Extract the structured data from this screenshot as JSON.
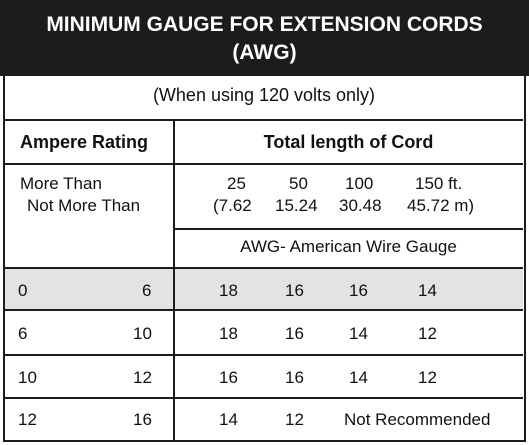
{
  "title": {
    "line1": "MINIMUM GAUGE FOR EXTENSION CORDS",
    "line2": "(AWG)"
  },
  "note": "(When using 120 volts only)",
  "headers": {
    "ampere": "Ampere Rating",
    "length": "Total length of Cord"
  },
  "subheader": {
    "more_than": "More Than",
    "not_more_than": "Not More Than",
    "lengths_ft": [
      "25",
      "50",
      "100",
      "150 ft."
    ],
    "lengths_m": [
      "(7.62",
      "15.24",
      "30.48",
      "45.72 m)"
    ],
    "awg": "AWG- American Wire Gauge"
  },
  "rows": [
    {
      "from": "0",
      "to": "6",
      "gauges": [
        "18",
        "16",
        "16",
        "14"
      ],
      "highlight": true
    },
    {
      "from": "6",
      "to": "10",
      "gauges": [
        "18",
        "16",
        "14",
        "12"
      ],
      "highlight": false
    },
    {
      "from": "10",
      "to": "12",
      "gauges": [
        "16",
        "16",
        "14",
        "12"
      ],
      "highlight": false
    },
    {
      "from": "12",
      "to": "16",
      "gauges": [
        "14",
        "12"
      ],
      "not_recommended": "Not Recommended",
      "highlight": false
    }
  ],
  "colors": {
    "header_bg": "#1c1c1c",
    "highlight_row": "#e3e3e3",
    "text": "#111111"
  }
}
